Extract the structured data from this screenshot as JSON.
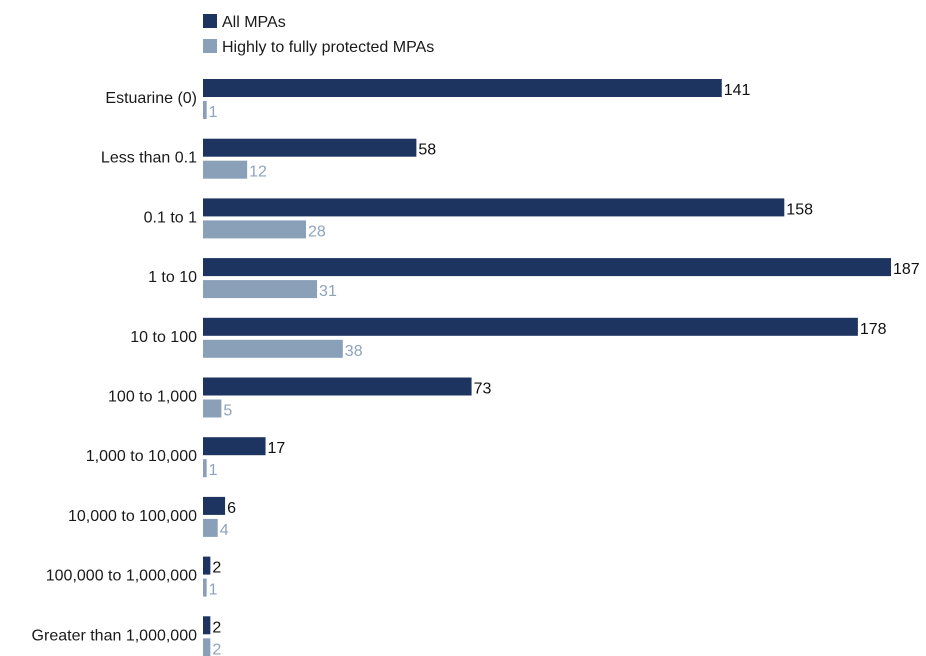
{
  "chart_data": {
    "type": "bar",
    "orientation": "horizontal",
    "legend": {
      "placement": "top-left",
      "items": [
        {
          "label": "All MPAs",
          "color": "#1d3461"
        },
        {
          "label": "Highly to fully protected MPAs",
          "color": "#8aa0b8"
        }
      ]
    },
    "categories": [
      "Estuarine (0)",
      "Less than 0.1",
      "0.1 to 1",
      "1 to 10",
      "10 to 100",
      "100 to 1,000",
      "1,000 to 10,000",
      "10,000 to 100,000",
      "100,000 to 1,000,000",
      "Greater than 1,000,000"
    ],
    "series": [
      {
        "name": "All MPAs",
        "color": "#1d3461",
        "values": [
          141,
          58,
          158,
          187,
          178,
          73,
          17,
          6,
          2,
          2
        ]
      },
      {
        "name": "Highly to fully protected MPAs",
        "color": "#8aa0b8",
        "values": [
          1,
          12,
          28,
          31,
          38,
          5,
          1,
          4,
          1,
          2
        ]
      }
    ],
    "xlim": [
      0,
      187
    ],
    "grid": false
  }
}
